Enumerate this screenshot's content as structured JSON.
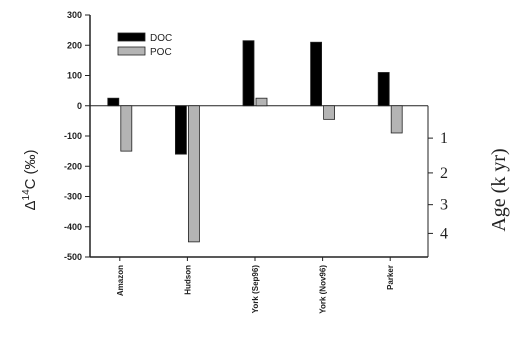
{
  "chart_data": {
    "type": "bar",
    "categories": [
      "Amazon",
      "Hudson",
      "York (Sep96)",
      "York (Nov96)",
      "Parker"
    ],
    "series": [
      {
        "name": "DOC",
        "color": "#000000",
        "values": [
          25,
          -160,
          215,
          210,
          110
        ]
      },
      {
        "name": "POC",
        "color": "#b4b4b4",
        "values": [
          -150,
          -450,
          25,
          -45,
          -90
        ]
      }
    ],
    "ylabel_parts": {
      "delta": "Δ",
      "iso": "14",
      "elem": "C",
      "unit": "(‰)"
    },
    "ylim": [
      -500,
      300
    ],
    "yticks": [
      -500,
      -400,
      -300,
      -200,
      -100,
      0,
      100,
      200,
      300
    ],
    "right_axis": {
      "label": "Age (k yr)",
      "ticks": [
        {
          "label": "1",
          "y_value": -107
        },
        {
          "label": "2",
          "y_value": -222
        },
        {
          "label": "3",
          "y_value": -327
        },
        {
          "label": "4",
          "y_value": -422
        }
      ]
    },
    "legend_position": "top-left",
    "grid": false
  }
}
